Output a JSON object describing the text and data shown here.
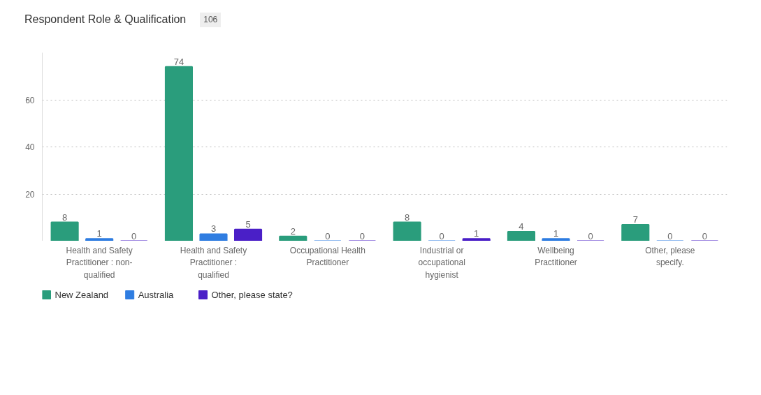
{
  "chart_data": {
    "type": "bar",
    "title": "Respondent Role & Qualification",
    "annotations": [
      "106"
    ],
    "categories": [
      "Health and Safety Practitioner : non-qualified",
      "Health and Safety Practitioner : qualified",
      "Occupational Health Practitioner",
      "Industrial or occupational hygienist",
      "Wellbeing Practitioner",
      "Other, please specify."
    ],
    "series": [
      {
        "name": "New Zealand",
        "color": "#2a9d7c",
        "values": [
          8,
          74,
          2,
          8,
          4,
          7
        ]
      },
      {
        "name": "Australia",
        "color": "#2f7de1",
        "values": [
          1,
          3,
          0,
          0,
          1,
          0
        ]
      },
      {
        "name": "Other, please state?",
        "color": "#4a1fc7",
        "values": [
          0,
          5,
          0,
          1,
          0,
          0
        ]
      }
    ],
    "ylim": [
      0,
      80
    ],
    "yticks": [
      20,
      40,
      60
    ],
    "grid": "y",
    "legend": "bottom left",
    "data_labels": true
  }
}
